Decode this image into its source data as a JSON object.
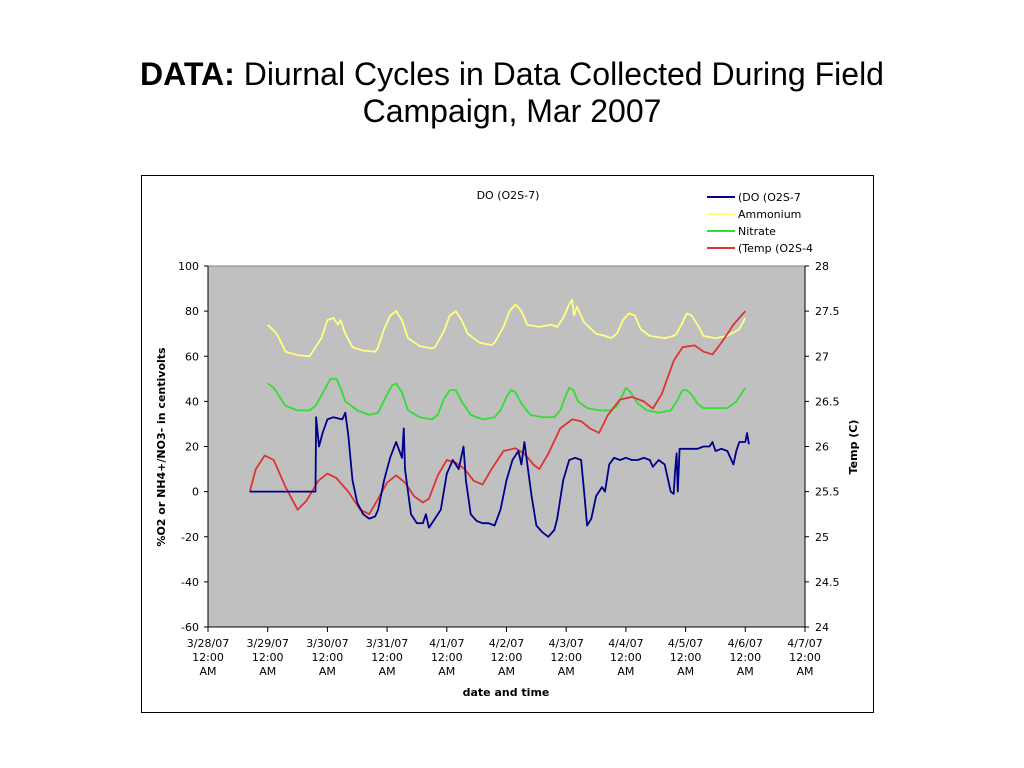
{
  "slide": {
    "title_lead": "DATA:",
    "title_rest": "Diurnal Cycles in Data Collected During Field Campaign, Mar 2007"
  },
  "chart_data": {
    "type": "line",
    "title": "DO (O2S-7)",
    "xlabel": "date and time",
    "ylabel": "%O2 or NH4+/NO3- in centivolts",
    "y2label": "Temp (C)",
    "xlim": [
      0,
      10
    ],
    "ylim": [
      -60,
      100
    ],
    "y2lim": [
      24,
      28
    ],
    "x_tick_labels": [
      [
        "3/28/07",
        "12:00",
        "AM"
      ],
      [
        "3/29/07",
        "12:00",
        "AM"
      ],
      [
        "3/30/07",
        "12:00",
        "AM"
      ],
      [
        "3/31/07",
        "12:00",
        "AM"
      ],
      [
        "4/1/07",
        "12:00",
        "AM"
      ],
      [
        "4/2/07",
        "12:00",
        "AM"
      ],
      [
        "4/3/07",
        "12:00",
        "AM"
      ],
      [
        "4/4/07",
        "12:00",
        "AM"
      ],
      [
        "4/5/07",
        "12:00",
        "AM"
      ],
      [
        "4/6/07",
        "12:00",
        "AM"
      ],
      [
        "4/7/07",
        "12:00",
        "AM"
      ]
    ],
    "y_ticks": [
      100,
      80,
      60,
      40,
      20,
      0,
      -20,
      -40,
      -60
    ],
    "y2_ticks": [
      "28",
      "27.5",
      "27",
      "26.5",
      "26",
      "25.5",
      "25",
      "24.5",
      "24"
    ],
    "x_units": "days since 3/28/07 12:00 AM",
    "plot_background": "#c0c0c0",
    "legend_position": "top-right",
    "series": [
      {
        "name": "(DO (O2S-7",
        "color": "#00008b",
        "axis": "left",
        "points": [
          [
            0.7,
            0
          ],
          [
            1.0,
            0
          ],
          [
            1.3,
            0
          ],
          [
            1.8,
            0
          ],
          [
            1.81,
            33
          ],
          [
            1.86,
            20
          ],
          [
            1.92,
            26
          ],
          [
            2.0,
            32
          ],
          [
            2.1,
            33
          ],
          [
            2.25,
            32
          ],
          [
            2.3,
            35
          ],
          [
            2.35,
            25
          ],
          [
            2.42,
            5
          ],
          [
            2.5,
            -5
          ],
          [
            2.6,
            -10
          ],
          [
            2.7,
            -12
          ],
          [
            2.8,
            -11
          ],
          [
            2.85,
            -8
          ],
          [
            2.95,
            5
          ],
          [
            3.05,
            15
          ],
          [
            3.15,
            22
          ],
          [
            3.25,
            15
          ],
          [
            3.28,
            28
          ],
          [
            3.3,
            10
          ],
          [
            3.4,
            -10
          ],
          [
            3.5,
            -14
          ],
          [
            3.6,
            -14
          ],
          [
            3.65,
            -10
          ],
          [
            3.7,
            -16
          ],
          [
            3.8,
            -12
          ],
          [
            3.9,
            -8
          ],
          [
            4.0,
            8
          ],
          [
            4.1,
            14
          ],
          [
            4.2,
            10
          ],
          [
            4.28,
            20
          ],
          [
            4.32,
            5
          ],
          [
            4.4,
            -10
          ],
          [
            4.5,
            -13
          ],
          [
            4.6,
            -14
          ],
          [
            4.7,
            -14
          ],
          [
            4.8,
            -15
          ],
          [
            4.9,
            -8
          ],
          [
            5.0,
            5
          ],
          [
            5.1,
            14
          ],
          [
            5.2,
            18
          ],
          [
            5.25,
            12
          ],
          [
            5.3,
            22
          ],
          [
            5.36,
            10
          ],
          [
            5.42,
            -2
          ],
          [
            5.5,
            -15
          ],
          [
            5.6,
            -18
          ],
          [
            5.7,
            -20
          ],
          [
            5.8,
            -17
          ],
          [
            5.85,
            -12
          ],
          [
            5.95,
            5
          ],
          [
            6.05,
            14
          ],
          [
            6.15,
            15
          ],
          [
            6.25,
            14
          ],
          [
            6.3,
            0
          ],
          [
            6.35,
            -15
          ],
          [
            6.42,
            -12
          ],
          [
            6.5,
            -2
          ],
          [
            6.6,
            2
          ],
          [
            6.65,
            0
          ],
          [
            6.72,
            12
          ],
          [
            6.8,
            15
          ],
          [
            6.9,
            14
          ],
          [
            7.0,
            15
          ],
          [
            7.1,
            14
          ],
          [
            7.2,
            14
          ],
          [
            7.3,
            15
          ],
          [
            7.4,
            14
          ],
          [
            7.45,
            11
          ],
          [
            7.55,
            14
          ],
          [
            7.65,
            12
          ],
          [
            7.7,
            6
          ],
          [
            7.75,
            0
          ],
          [
            7.8,
            -1
          ],
          [
            7.82,
            8
          ],
          [
            7.85,
            17
          ],
          [
            7.87,
            0
          ],
          [
            7.9,
            19
          ],
          [
            8.0,
            19
          ],
          [
            8.1,
            19
          ],
          [
            8.2,
            19
          ],
          [
            8.3,
            20
          ],
          [
            8.4,
            20
          ],
          [
            8.45,
            22
          ],
          [
            8.5,
            18
          ],
          [
            8.6,
            19
          ],
          [
            8.7,
            18
          ],
          [
            8.8,
            12
          ],
          [
            8.85,
            18
          ],
          [
            8.9,
            22
          ],
          [
            9.0,
            22
          ],
          [
            9.03,
            26
          ],
          [
            9.06,
            21
          ]
        ]
      },
      {
        "name": "Ammonium",
        "color": "#ffff80",
        "axis": "left",
        "points": [
          [
            1.0,
            74
          ],
          [
            1.15,
            70
          ],
          [
            1.3,
            62
          ],
          [
            1.5,
            60.5
          ],
          [
            1.7,
            60
          ],
          [
            1.75,
            62
          ],
          [
            1.9,
            68
          ],
          [
            2.0,
            76
          ],
          [
            2.1,
            77
          ],
          [
            2.18,
            74
          ],
          [
            2.22,
            76
          ],
          [
            2.3,
            70
          ],
          [
            2.42,
            64
          ],
          [
            2.6,
            62.5
          ],
          [
            2.8,
            62
          ],
          [
            2.85,
            64
          ],
          [
            2.95,
            72
          ],
          [
            3.05,
            78
          ],
          [
            3.15,
            80
          ],
          [
            3.25,
            76
          ],
          [
            3.35,
            68
          ],
          [
            3.55,
            64.5
          ],
          [
            3.75,
            63.5
          ],
          [
            3.8,
            64
          ],
          [
            3.95,
            71
          ],
          [
            4.05,
            78
          ],
          [
            4.15,
            80
          ],
          [
            4.25,
            76
          ],
          [
            4.35,
            70
          ],
          [
            4.55,
            66
          ],
          [
            4.75,
            65
          ],
          [
            4.8,
            66
          ],
          [
            4.95,
            73
          ],
          [
            5.05,
            80
          ],
          [
            5.15,
            83
          ],
          [
            5.25,
            80
          ],
          [
            5.35,
            74
          ],
          [
            5.55,
            73
          ],
          [
            5.75,
            74
          ],
          [
            5.85,
            73
          ],
          [
            5.95,
            77
          ],
          [
            6.05,
            83
          ],
          [
            6.1,
            85
          ],
          [
            6.13,
            78
          ],
          [
            6.18,
            82
          ],
          [
            6.3,
            75
          ],
          [
            6.5,
            70
          ],
          [
            6.65,
            69
          ],
          [
            6.75,
            68
          ],
          [
            6.85,
            70
          ],
          [
            6.95,
            76
          ],
          [
            7.05,
            79
          ],
          [
            7.15,
            78
          ],
          [
            7.25,
            72
          ],
          [
            7.4,
            69
          ],
          [
            7.65,
            68
          ],
          [
            7.8,
            69
          ],
          [
            7.85,
            70
          ],
          [
            7.95,
            75
          ],
          [
            8.02,
            79
          ],
          [
            8.1,
            78
          ],
          [
            8.2,
            74
          ],
          [
            8.3,
            69
          ],
          [
            8.5,
            68
          ],
          [
            8.7,
            69
          ],
          [
            8.9,
            72
          ],
          [
            9.0,
            77
          ]
        ]
      },
      {
        "name": "Nitrate",
        "color": "#33dd33",
        "axis": "left",
        "points": [
          [
            1.0,
            48
          ],
          [
            1.1,
            46
          ],
          [
            1.3,
            38
          ],
          [
            1.5,
            36
          ],
          [
            1.7,
            36
          ],
          [
            1.8,
            38
          ],
          [
            1.95,
            45
          ],
          [
            2.05,
            50
          ],
          [
            2.15,
            50
          ],
          [
            2.22,
            46
          ],
          [
            2.3,
            40
          ],
          [
            2.5,
            36
          ],
          [
            2.7,
            34
          ],
          [
            2.85,
            35
          ],
          [
            2.98,
            42
          ],
          [
            3.08,
            47
          ],
          [
            3.15,
            48
          ],
          [
            3.25,
            44
          ],
          [
            3.35,
            36
          ],
          [
            3.55,
            33
          ],
          [
            3.75,
            32
          ],
          [
            3.85,
            34
          ],
          [
            3.95,
            41
          ],
          [
            4.05,
            45
          ],
          [
            4.15,
            45
          ],
          [
            4.25,
            40
          ],
          [
            4.4,
            34
          ],
          [
            4.6,
            32
          ],
          [
            4.8,
            33
          ],
          [
            4.9,
            36
          ],
          [
            5.0,
            42
          ],
          [
            5.08,
            45
          ],
          [
            5.15,
            44
          ],
          [
            5.25,
            39
          ],
          [
            5.4,
            34
          ],
          [
            5.6,
            33
          ],
          [
            5.8,
            33
          ],
          [
            5.9,
            36
          ],
          [
            6.0,
            43
          ],
          [
            6.05,
            46
          ],
          [
            6.12,
            45
          ],
          [
            6.2,
            40
          ],
          [
            6.35,
            37
          ],
          [
            6.55,
            36
          ],
          [
            6.75,
            36
          ],
          [
            6.85,
            38
          ],
          [
            6.95,
            43
          ],
          [
            7.0,
            46
          ],
          [
            7.08,
            44
          ],
          [
            7.2,
            39
          ],
          [
            7.35,
            36
          ],
          [
            7.55,
            35
          ],
          [
            7.75,
            36
          ],
          [
            7.85,
            40
          ],
          [
            7.95,
            45
          ],
          [
            8.02,
            45
          ],
          [
            8.1,
            43
          ],
          [
            8.2,
            39
          ],
          [
            8.3,
            37
          ],
          [
            8.5,
            37
          ],
          [
            8.7,
            37
          ],
          [
            8.85,
            40
          ],
          [
            9.0,
            46
          ]
        ]
      },
      {
        "name": "(Temp (O2S-4",
        "color": "#dd3333",
        "axis": "right",
        "points": [
          [
            0.7,
            25.5
          ],
          [
            0.8,
            25.75
          ],
          [
            0.95,
            25.9
          ],
          [
            1.1,
            25.85
          ],
          [
            1.3,
            25.55
          ],
          [
            1.5,
            25.3
          ],
          [
            1.65,
            25.4
          ],
          [
            1.85,
            25.62
          ],
          [
            2.0,
            25.7
          ],
          [
            2.15,
            25.65
          ],
          [
            2.35,
            25.5
          ],
          [
            2.55,
            25.3
          ],
          [
            2.7,
            25.25
          ],
          [
            2.85,
            25.42
          ],
          [
            3.0,
            25.6
          ],
          [
            3.15,
            25.68
          ],
          [
            3.3,
            25.6
          ],
          [
            3.45,
            25.45
          ],
          [
            3.6,
            25.38
          ],
          [
            3.7,
            25.42
          ],
          [
            3.85,
            25.68
          ],
          [
            4.0,
            25.85
          ],
          [
            4.15,
            25.82
          ],
          [
            4.3,
            25.75
          ],
          [
            4.45,
            25.62
          ],
          [
            4.6,
            25.58
          ],
          [
            4.75,
            25.75
          ],
          [
            4.95,
            25.95
          ],
          [
            5.15,
            25.98
          ],
          [
            5.3,
            25.92
          ],
          [
            5.45,
            25.8
          ],
          [
            5.55,
            25.75
          ],
          [
            5.7,
            25.92
          ],
          [
            5.9,
            26.2
          ],
          [
            6.1,
            26.3
          ],
          [
            6.25,
            26.28
          ],
          [
            6.4,
            26.2
          ],
          [
            6.55,
            26.15
          ],
          [
            6.7,
            26.35
          ],
          [
            6.9,
            26.52
          ],
          [
            7.1,
            26.55
          ],
          [
            7.3,
            26.5
          ],
          [
            7.45,
            26.42
          ],
          [
            7.6,
            26.58
          ],
          [
            7.8,
            26.95
          ],
          [
            7.95,
            27.1
          ],
          [
            8.15,
            27.12
          ],
          [
            8.3,
            27.05
          ],
          [
            8.45,
            27.02
          ],
          [
            8.6,
            27.15
          ],
          [
            8.8,
            27.35
          ],
          [
            9.0,
            27.5
          ]
        ]
      }
    ]
  }
}
